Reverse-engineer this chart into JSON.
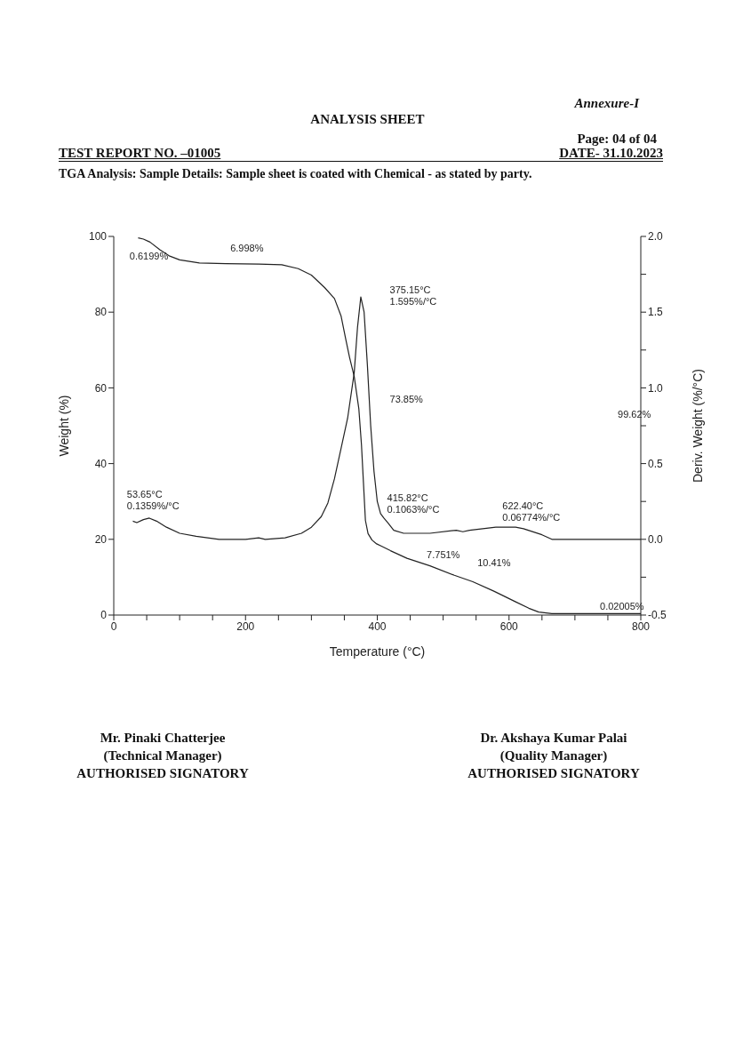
{
  "chart_data": {
    "type": "line",
    "title": "ANALYSIS SHEET",
    "xlabel": "Temperature (°C)",
    "ylabel": "Weight (%)",
    "y2label": "Deriv. Weight (%/°C)",
    "xlim": [
      0,
      800
    ],
    "xticks": [
      0,
      {
        "value": 50,
        "label": null
      },
      {
        "value": 100,
        "label": null
      },
      {
        "value": 150,
        "label": null
      },
      200,
      {
        "value": 250,
        "label": null
      },
      {
        "value": 300,
        "label": null
      },
      {
        "value": 350,
        "label": null
      },
      400,
      {
        "value": 450,
        "label": null
      },
      {
        "value": 500,
        "label": null
      },
      {
        "value": 550,
        "label": null
      },
      600,
      {
        "value": 650,
        "label": null
      },
      {
        "value": 700,
        "label": null
      },
      {
        "value": 750,
        "label": null
      },
      800
    ],
    "ylim": [
      0,
      100
    ],
    "yticks": [
      0,
      20,
      40,
      60,
      80,
      100
    ],
    "y2lim": [
      -0.5,
      2.0
    ],
    "y2ticks": [
      {
        "value": -0.5,
        "label": "-0.5"
      },
      {
        "value": -0.25,
        "label": null
      },
      {
        "value": 0,
        "label": "0.0"
      },
      {
        "value": 0.25,
        "label": null
      },
      {
        "value": 0.5,
        "label": "0.5"
      },
      {
        "value": 0.75,
        "label": null
      },
      {
        "value": 1,
        "label": "1.0"
      },
      {
        "value": 1.25,
        "label": null
      },
      {
        "value": 1.5,
        "label": "1.5"
      },
      {
        "value": 1.75,
        "label": null
      },
      {
        "value": 2,
        "label": "2.0"
      }
    ],
    "grid": false,
    "legend": false,
    "marker": "none",
    "line_style": "solid",
    "series": [
      {
        "color": "#222222",
        "x": [
          37,
          45,
          55,
          70,
          85,
          100,
          130,
          170,
          220,
          255,
          280,
          300,
          320,
          335,
          345,
          352,
          358,
          365,
          372,
          376,
          379,
          382,
          386,
          392,
          399,
          405,
          420,
          445,
          480,
          517,
          545,
          577,
          610,
          630,
          645,
          665,
          700,
          800
        ],
        "values": [
          99.6,
          99.3,
          98.5,
          96.5,
          94.8,
          93.8,
          93.0,
          92.8,
          92.7,
          92.5,
          91.5,
          89.8,
          86.5,
          83.6,
          79,
          73,
          68,
          63,
          54.5,
          45,
          35,
          25,
          21.5,
          19.8,
          18.8,
          18.3,
          17.0,
          15.0,
          13.0,
          10.5,
          8.8,
          6.3,
          3.5,
          1.8,
          0.8,
          0.4,
          0.4,
          0.4
        ]
      },
      {
        "color": "#222222",
        "axis": "y2",
        "x": [
          29,
          35,
          45,
          54,
          65,
          80,
          100,
          125,
          160,
          200,
          220,
          230,
          260,
          285,
          300,
          315,
          325,
          335,
          345,
          355,
          365,
          370,
          375,
          380,
          385,
          390,
          395,
          400,
          405,
          410,
          416,
          425,
          440,
          480,
          520,
          530,
          540,
          580,
          610,
          622,
          650,
          665,
          700,
          800
        ],
        "values": [
          0.12,
          0.11,
          0.13,
          0.14,
          0.12,
          0.08,
          0.04,
          0.02,
          0.0,
          0.0,
          0.01,
          0.0,
          0.01,
          0.04,
          0.08,
          0.15,
          0.24,
          0.4,
          0.6,
          0.8,
          1.1,
          1.4,
          1.6,
          1.5,
          1.15,
          0.75,
          0.45,
          0.25,
          0.17,
          0.14,
          0.11,
          0.06,
          0.04,
          0.04,
          0.06,
          0.05,
          0.06,
          0.08,
          0.08,
          0.07,
          0.03,
          0.0,
          0.0,
          0.0
        ]
      }
    ],
    "annotations": [
      "Annexure-I",
      "Page: 04 of 04",
      "TEST REPORT NO. –01005",
      "DATE- 31.10.2023",
      "TGA Analysis: Sample Details: Sample sheet is coated with Chemical - as stated by party.",
      "Mr. Pinaki Chatterjee",
      "(Technical Manager)",
      "AUTHORISED SIGNATORY",
      "Dr. Akshaya Kumar Palai",
      "(Quality Manager)",
      "AUTHORISED SIGNATORY",
      "0.6199%",
      "6.998%",
      "375.15°C\n1.595%/°C",
      "73.85%",
      "99.62%",
      "53.65°C\n0.1359%/°C",
      "415.82°C\n0.1063%/°C",
      "622.40°C\n0.06774%/°C",
      "7.751%",
      "10.41%",
      "0.02005%"
    ]
  }
}
